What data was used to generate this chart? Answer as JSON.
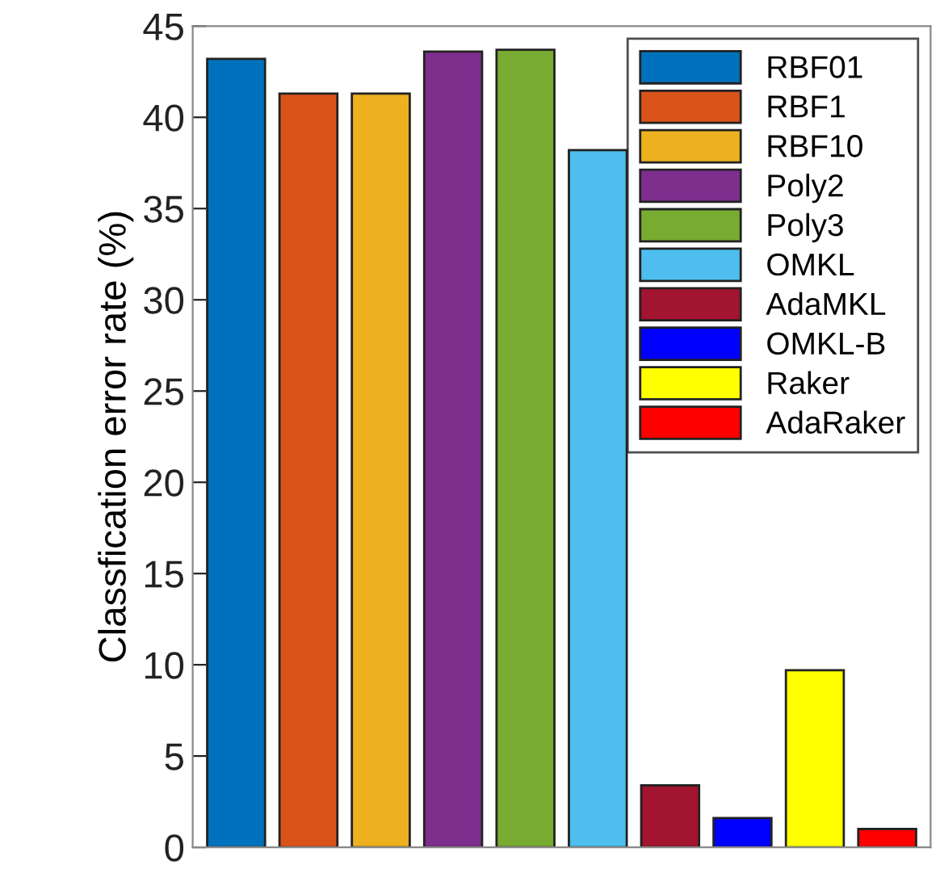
{
  "chart_data": {
    "type": "bar",
    "ylabel": "Classfication error rate (%)",
    "categories": [
      null,
      null,
      null,
      null,
      null,
      null,
      null,
      null,
      null,
      null
    ],
    "series": [
      {
        "name": "RBF01",
        "color": "#0072bd",
        "values": [
          43.2,
          null,
          null,
          null,
          null,
          null,
          null,
          null,
          null,
          null
        ]
      },
      {
        "name": "RBF1",
        "color": "#d95319",
        "values": [
          null,
          41.3,
          null,
          null,
          null,
          null,
          null,
          null,
          null,
          null
        ]
      },
      {
        "name": "RBF10",
        "color": "#edb120",
        "values": [
          null,
          null,
          41.3,
          null,
          null,
          null,
          null,
          null,
          null,
          null
        ]
      },
      {
        "name": "Poly2",
        "color": "#7e2f8e",
        "values": [
          null,
          null,
          null,
          43.6,
          null,
          null,
          null,
          null,
          null,
          null
        ]
      },
      {
        "name": "Poly3",
        "color": "#77ac30",
        "values": [
          null,
          null,
          null,
          null,
          43.7,
          null,
          null,
          null,
          null,
          null
        ]
      },
      {
        "name": "OMKL",
        "color": "#4dbeee",
        "values": [
          null,
          null,
          null,
          null,
          null,
          38.2,
          null,
          null,
          null,
          null
        ]
      },
      {
        "name": "AdaMKL",
        "color": "#a2142f",
        "values": [
          null,
          null,
          null,
          null,
          null,
          null,
          3.4,
          null,
          null,
          null
        ]
      },
      {
        "name": "OMKL-B",
        "color": "#0000ff",
        "values": [
          null,
          null,
          null,
          null,
          null,
          null,
          null,
          1.6,
          null,
          null
        ]
      },
      {
        "name": "Raker",
        "color": "#ffff00",
        "values": [
          null,
          null,
          null,
          null,
          null,
          null,
          null,
          null,
          9.7,
          null
        ]
      },
      {
        "name": "AdaRaker",
        "color": "#ff0000",
        "values": [
          null,
          null,
          null,
          null,
          null,
          null,
          null,
          null,
          null,
          1.0
        ]
      }
    ],
    "ylim": [
      0,
      45
    ],
    "yticks": [
      0,
      5,
      10,
      15,
      20,
      25,
      30,
      35,
      40,
      45
    ],
    "grid": false,
    "legend": "top right"
  }
}
